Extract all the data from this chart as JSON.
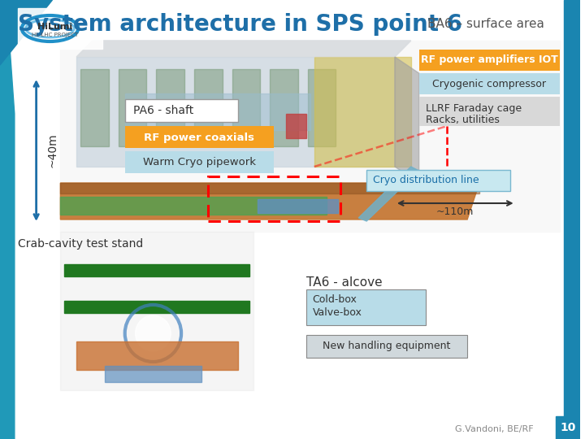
{
  "title": "System architecture in SPS point 6",
  "subtitle": "BA6 – surface area",
  "labels": {
    "rf_amplifiers": "RF power amplifiers IOT",
    "cryo_compressor": "Cryogenic compressor",
    "llrf_line1": "LLRF Faraday cage",
    "llrf_line2": "Racks, utilities",
    "pa6_shaft": "PA6 - shaft",
    "rf_coaxials": "RF power coaxials",
    "warm_cryo": "Warm Cryo pipework",
    "cryo_dist": "Cryo distribution line",
    "cryo_length": "~110m",
    "crab_cavity": "Crab-cavity test stand",
    "ta6_alcove": "TA6 - alcove",
    "cold_valve_1": "Cold-box",
    "cold_valve_2": "Valve-box",
    "new_handling": "New handling equipment",
    "depth": "~40m",
    "credit": "G.Vandoni, BE/RF",
    "page": "10"
  },
  "colors": {
    "orange": "#F5A020",
    "light_blue_box": "#B8DCE8",
    "light_gray_box": "#D8D8D8",
    "white": "#FFFFFF",
    "title_blue": "#1E6FA8",
    "teal_left": "#2196B5",
    "dark_gray_text": "#404040",
    "cryo_dist_bg": "#C8E8F0",
    "cold_valve_bg": "#B8DCE8",
    "new_handling_bg": "#D0D8DC"
  }
}
